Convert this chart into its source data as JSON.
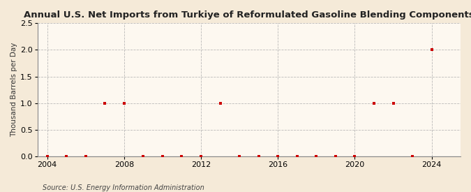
{
  "title": "Annual U.S. Net Imports from Turkiye of Reformulated Gasoline Blending Components",
  "ylabel": "Thousand Barrels per Day",
  "source": "Source: U.S. Energy Information Administration",
  "background_color": "#f5ead8",
  "plot_background_color": "#fdf8f0",
  "years": [
    2004,
    2005,
    2006,
    2007,
    2008,
    2009,
    2010,
    2011,
    2012,
    2013,
    2014,
    2015,
    2016,
    2017,
    2018,
    2019,
    2020,
    2021,
    2022,
    2023,
    2024
  ],
  "values": [
    0,
    0,
    0,
    1.0,
    1.0,
    0,
    0,
    0,
    0,
    1.0,
    0,
    0,
    0,
    0,
    0,
    0,
    0,
    1.0,
    1.0,
    0,
    2.0
  ],
  "xlim": [
    2003.5,
    2025.5
  ],
  "ylim": [
    0,
    2.5
  ],
  "yticks": [
    0.0,
    0.5,
    1.0,
    1.5,
    2.0,
    2.5
  ],
  "xticks": [
    2004,
    2008,
    2012,
    2016,
    2020,
    2024
  ],
  "vline_years": [
    2004,
    2008,
    2012,
    2016,
    2020,
    2024
  ],
  "marker_color": "#cc0000",
  "marker_size": 3.5,
  "title_fontsize": 9.5,
  "axis_fontsize": 8,
  "ylabel_fontsize": 7.5,
  "source_fontsize": 7
}
